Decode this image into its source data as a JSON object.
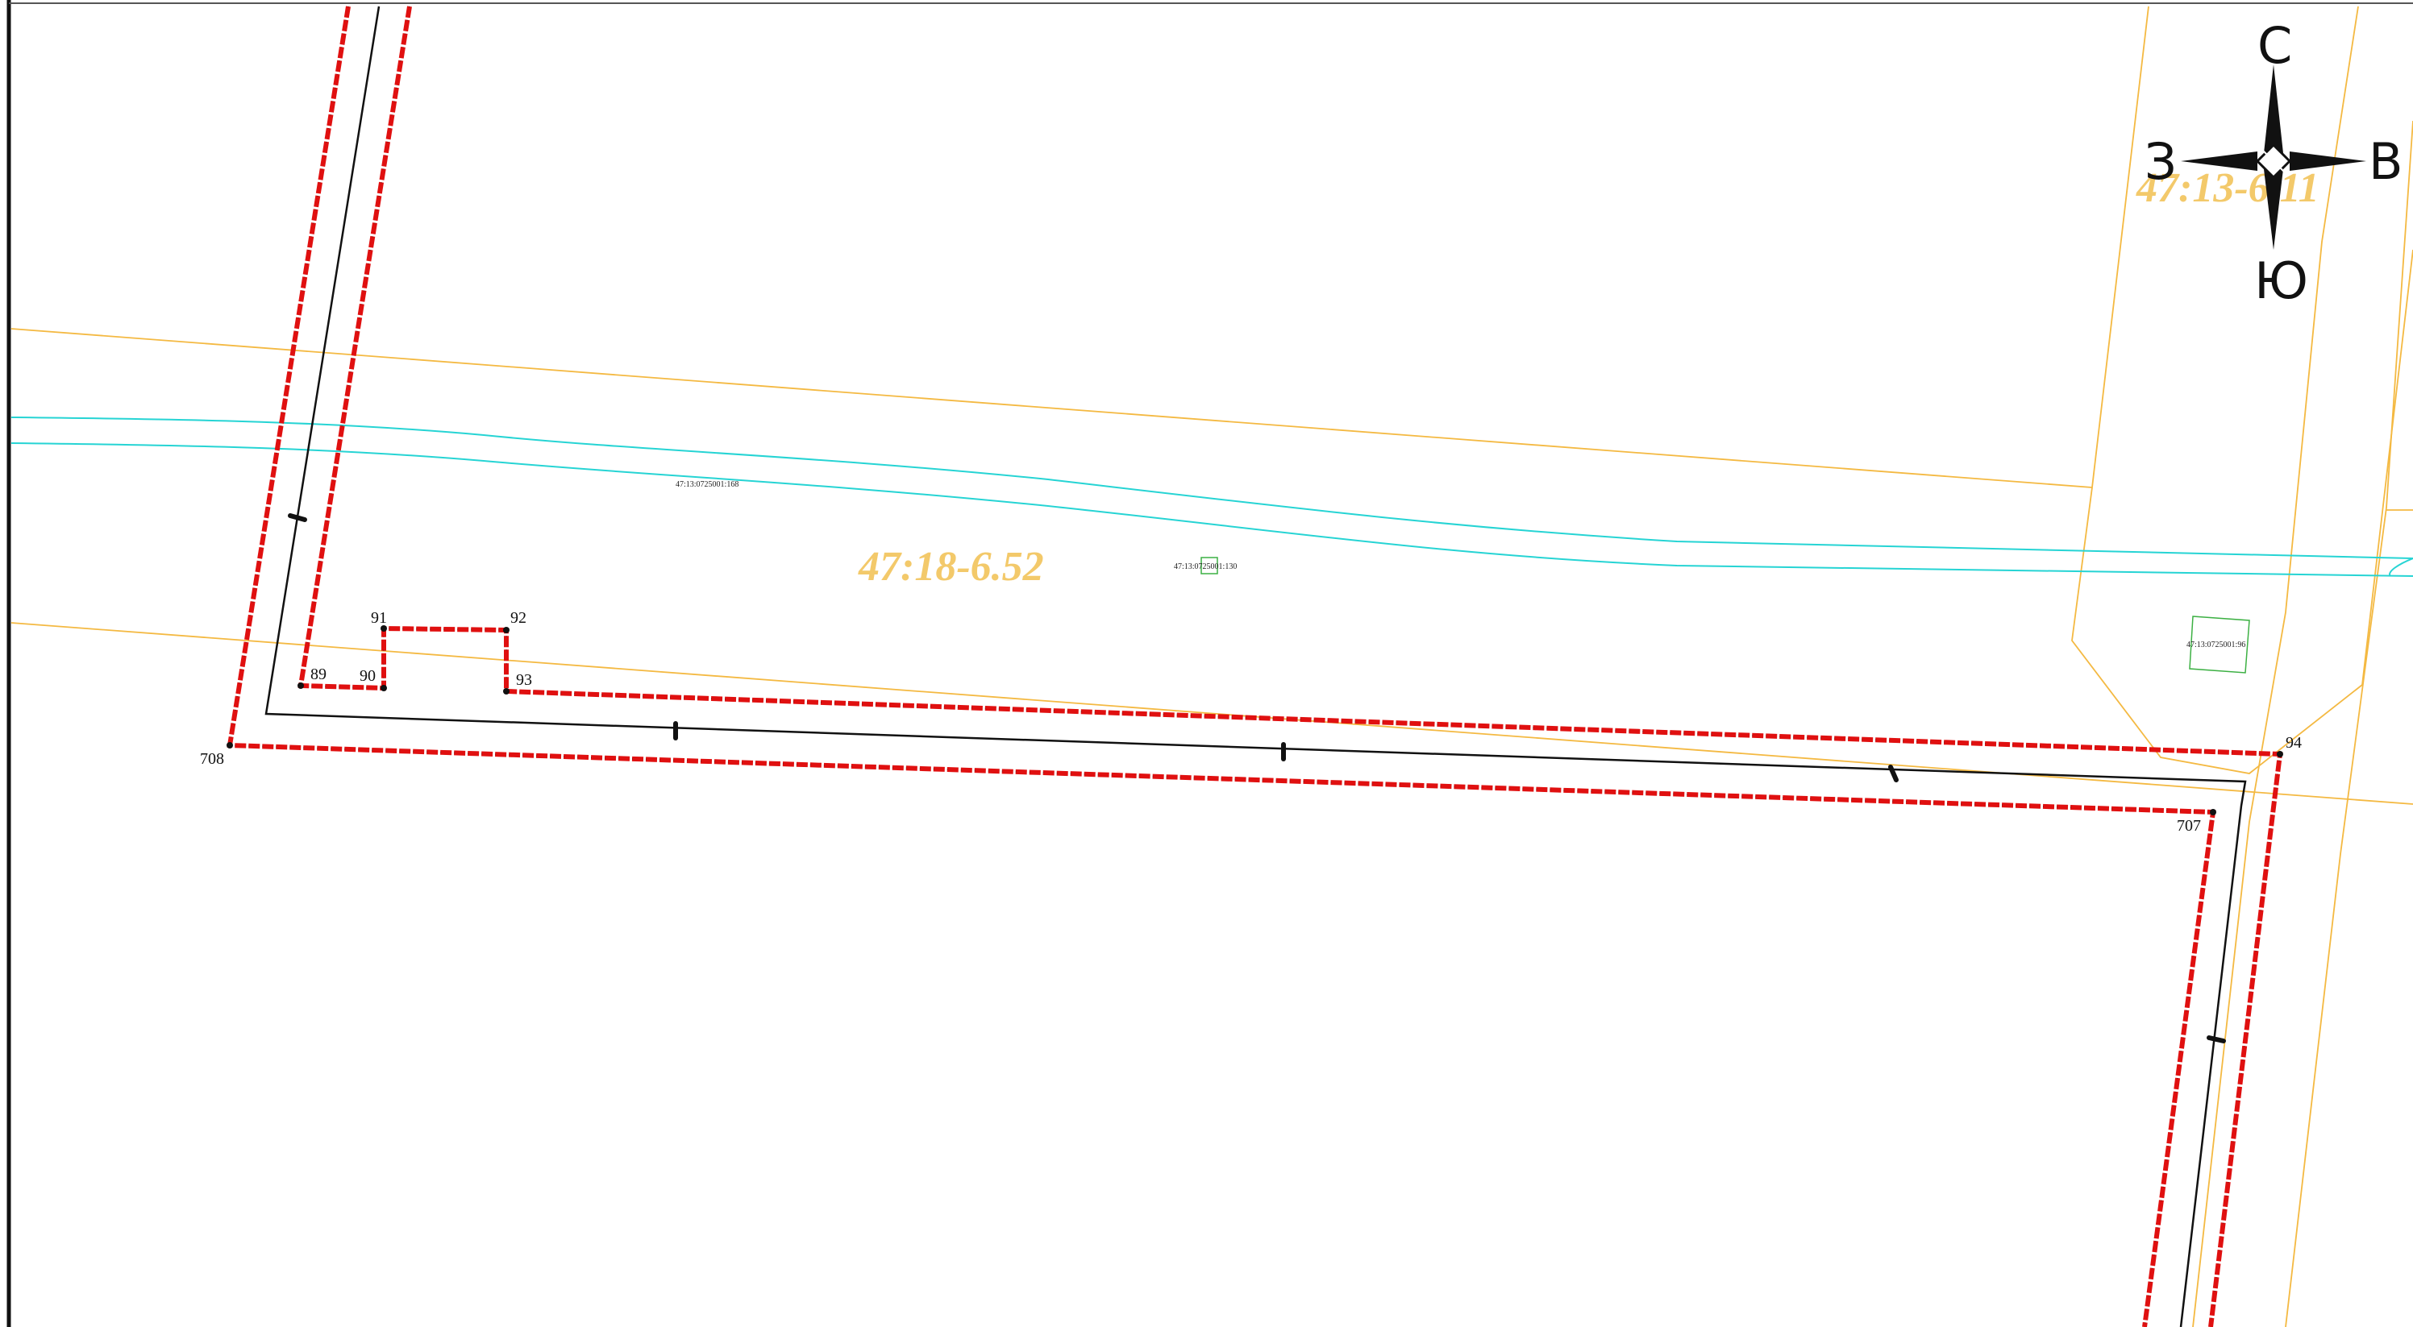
{
  "map": {
    "zones": [
      {
        "id": "zone-main",
        "label": "47:18-6.52"
      },
      {
        "id": "zone-ne",
        "label": "47:13-6.11"
      }
    ],
    "parcels": [
      {
        "id": "parcel-168",
        "label": "47:13:0725001:168"
      },
      {
        "id": "parcel-130",
        "label": "47:13:0725001:130"
      },
      {
        "id": "parcel-96",
        "label": "47:13:0725001:96"
      }
    ],
    "points": [
      "89",
      "90",
      "91",
      "92",
      "93",
      "94",
      "707",
      "708"
    ],
    "compass": {
      "north": "С",
      "south": "Ю",
      "west": "З",
      "east": "В"
    },
    "colors": {
      "boundary": "#e01010",
      "centerline": "#111111",
      "zone_line": "#f4b942",
      "zone_text": "#f3c96a",
      "watercourse": "#26d4d4",
      "parcel": "#3cb043"
    }
  }
}
